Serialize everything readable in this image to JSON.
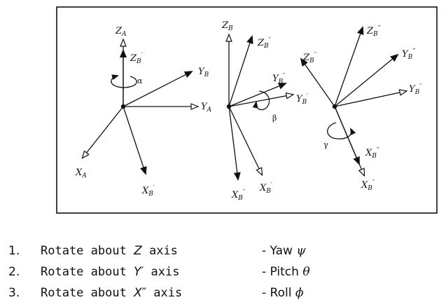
{
  "diagram": {
    "labels": {
      "zA": "Z",
      "zA_sub": "A",
      "zB1": "Z",
      "zB1_sub": "B",
      "zB1_sup": "′",
      "yB": "Y",
      "yB_sub": "B",
      "alpha": "α",
      "yA": "Y",
      "yA_sub": "A",
      "xA": "X",
      "xA_sub": "A",
      "xB1": "X",
      "xB1_sub": "B",
      "xB1_sup": "′",
      "zB_mid": "Z",
      "zB_mid_sub": "B",
      "zB2_mid": "Z",
      "zB2_mid_sub": "B",
      "zB2_mid_sup": "″",
      "yB2_mid": "Y",
      "yB2_mid_sub": "B",
      "yB2_mid_sup": "″",
      "yB1_mid": "Y",
      "yB1_mid_sub": "B",
      "yB1_mid_sup": "′",
      "beta": "β",
      "xB2_mid": "X",
      "xB2_mid_sub": "B",
      "xB2_mid_sup": "″",
      "xB1_mid": "X",
      "xB1_mid_sub": "B",
      "xB1_mid_sup": "′",
      "zB3_r": "Z",
      "zB3_r_sub": "B",
      "zB3_r_sup": "‴",
      "zB2_r": "Z",
      "zB2_r_sub": "B",
      "zB2_r_sup": "″",
      "yB3_r": "Y",
      "yB3_r_sub": "B",
      "yB3_r_sup": "‴",
      "yB2_r": "Y",
      "yB2_r_sub": "B",
      "yB2_r_sup": "″",
      "gamma": "γ",
      "xB3_r": "X",
      "xB3_r_sub": "B",
      "xB3_r_sup": "‴",
      "xB2_r": "X",
      "xB2_r_sub": "B",
      "xB2_r_sup": "″"
    }
  },
  "steps": [
    {
      "num": "1.",
      "pre": "Rotate about ",
      "axis": "Z",
      "post": " axis",
      "angle_label": "- Yaw ",
      "angle_symbol": "ψ"
    },
    {
      "num": "2.",
      "pre": "Rotate about ",
      "axis": "Y′",
      "post": " axis",
      "angle_label": "- Pitch ",
      "angle_symbol": "θ"
    },
    {
      "num": "3.",
      "pre": "Rotate about ",
      "axis": "X″",
      "post": " axis",
      "angle_label": "- Roll ",
      "angle_symbol": "ϕ"
    }
  ]
}
